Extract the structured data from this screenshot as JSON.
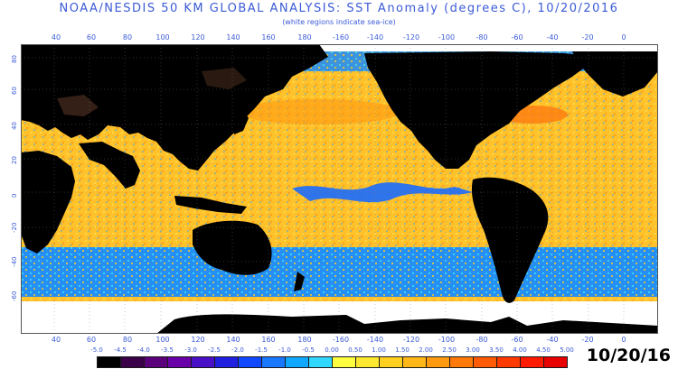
{
  "header": {
    "title": "NOAA/NESDIS 50 KM GLOBAL ANALYSIS: SST Anomaly (degrees C), 10/20/2016",
    "subtitle": "(white regions indicate sea-ice)"
  },
  "date_stamp": "10/20/16",
  "lon_labels": [
    "40",
    "60",
    "80",
    "100",
    "120",
    "140",
    "160",
    "180",
    "-160",
    "-140",
    "-120",
    "-100",
    "-80",
    "-60",
    "-40",
    "-20",
    "0"
  ],
  "lat_labels": [
    "80",
    "60",
    "40",
    "20",
    "0",
    "-20",
    "-40",
    "-60"
  ],
  "colorbar": {
    "labels": [
      "-5.0",
      "-4.5",
      "-4.0",
      "-3.5",
      "-3.0",
      "-2.5",
      "-2.0",
      "-1.5",
      "-1.0",
      "-0.5",
      "0.00",
      "0.50",
      "1.00",
      "1.50",
      "2.00",
      "2.50",
      "3.00",
      "3.50",
      "4.00",
      "4.50",
      "5.00"
    ],
    "colors": [
      "#000000",
      "#3a0048",
      "#5a007a",
      "#6a00a8",
      "#4a10c8",
      "#2020e0",
      "#1048ff",
      "#1a78ff",
      "#10a8ff",
      "#30d8ff",
      "#ffff40",
      "#ffe830",
      "#ffd020",
      "#ffb818",
      "#ff9a10",
      "#ff7a08",
      "#ff5a05",
      "#ff3a00",
      "#ff1a00",
      "#e80000"
    ]
  },
  "colors": {
    "land": "#000000",
    "ice": "#ffffff",
    "ocean_warm": "#ffc030",
    "ocean_cool": "#1a88ff",
    "label": "#3b5bd6"
  }
}
